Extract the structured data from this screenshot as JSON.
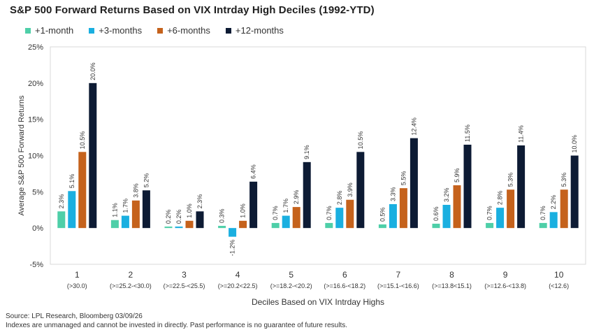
{
  "title": "S&P 500 Forward Returns Based on VIX Intrday High Deciles (1992-YTD)",
  "source_note": "Source: LPL Research, Bloomberg 03/09/26",
  "disclaimer": "Indexes are unmanaged and cannot be invested in directly. Past performance is no guarantee of future results.",
  "chart_data": {
    "type": "bar",
    "title": "S&P 500 Forward Returns Based on VIX Intrday High Deciles (1992-YTD)",
    "xlabel": "Deciles Based on VIX Intrday Highs",
    "ylabel": "Average S&P 500 Forward Returns",
    "ylim": [
      -5,
      25
    ],
    "yticks": [
      -5,
      0,
      5,
      10,
      15,
      20,
      25
    ],
    "ytick_labels": [
      "-5%",
      "0%",
      "5%",
      "10%",
      "15%",
      "20%",
      "25%"
    ],
    "grid": false,
    "legend_position": "top-left",
    "categories": [
      "1",
      "2",
      "3",
      "4",
      "5",
      "6",
      "7",
      "8",
      "9",
      "10"
    ],
    "category_sublabels": [
      "(>30.0)",
      "(>=25.2-<30.0)",
      "(>=22.5-<25.5)",
      "(>=20.2<22.5)",
      "(>=18.2-<20.2)",
      "(>=16.6-<18.2)",
      "(>=15.1-<16.6)",
      "(>=13.8<15.1)",
      "(>=12.6-<13.8)",
      "(<12.6)"
    ],
    "series": [
      {
        "name": "+1-month",
        "color": "#4ecfa8",
        "values": [
          2.3,
          1.1,
          0.2,
          0.3,
          0.7,
          0.7,
          0.5,
          0.6,
          0.7,
          0.7
        ]
      },
      {
        "name": "+3-months",
        "color": "#1aafe0",
        "values": [
          5.1,
          1.7,
          0.2,
          -1.2,
          1.7,
          2.8,
          3.3,
          3.2,
          2.8,
          2.2
        ]
      },
      {
        "name": "+6-months",
        "color": "#c5621c",
        "values": [
          10.5,
          3.8,
          1.0,
          1.0,
          2.9,
          3.9,
          5.5,
          5.9,
          5.3,
          5.3
        ]
      },
      {
        "name": "+12-months",
        "color": "#0d1b34",
        "values": [
          20.0,
          5.2,
          2.3,
          6.4,
          9.1,
          10.5,
          12.4,
          11.5,
          11.4,
          10.0
        ]
      }
    ]
  }
}
